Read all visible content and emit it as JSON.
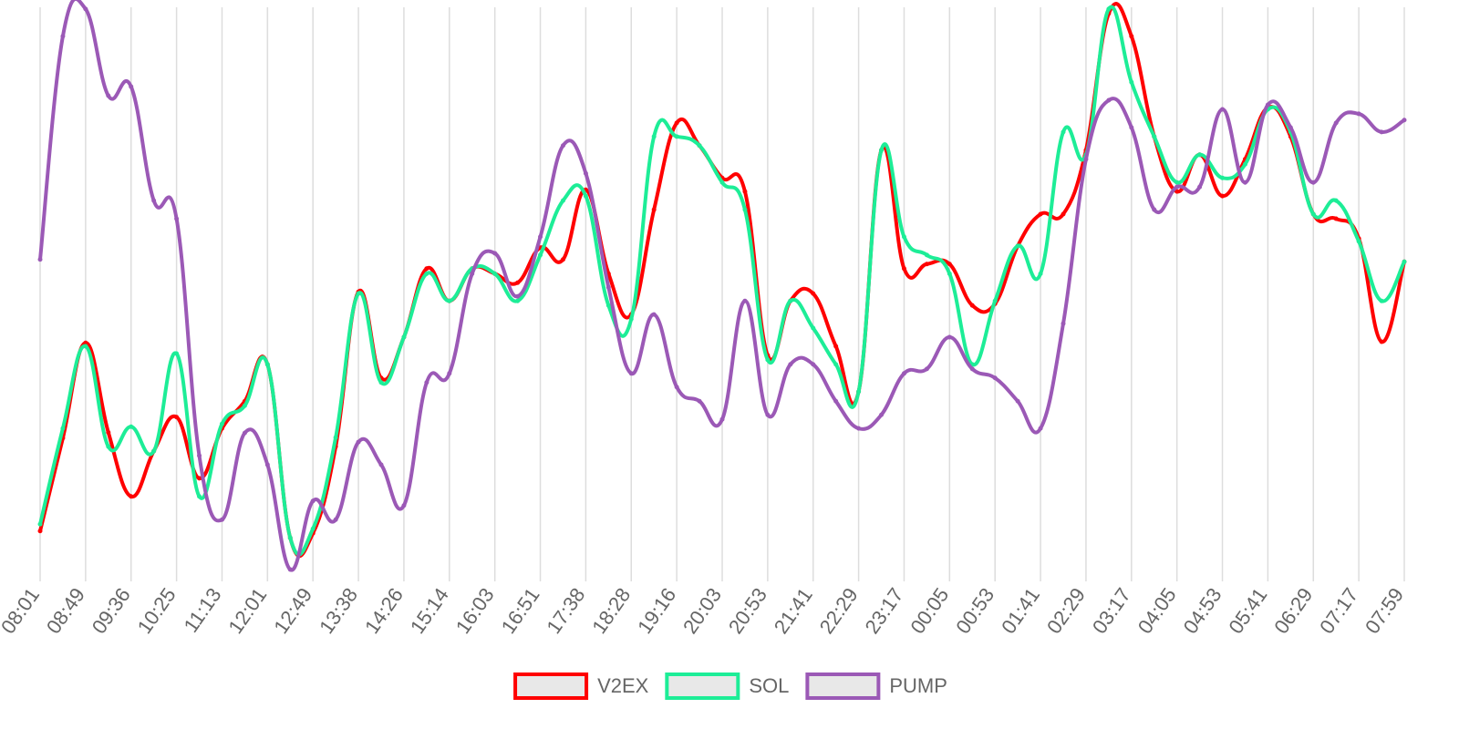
{
  "chart_data": {
    "type": "line",
    "categories": [
      "08:01",
      null,
      "08:49",
      null,
      "09:36",
      null,
      "10:25",
      null,
      "11:13",
      null,
      "12:01",
      null,
      "12:49",
      null,
      "13:38",
      null,
      "14:26",
      null,
      "15:14",
      null,
      "16:03",
      null,
      "16:51",
      null,
      "17:38",
      null,
      "18:28",
      null,
      "19:16",
      null,
      "20:03",
      null,
      "20:53",
      null,
      "21:41",
      null,
      "22:29",
      null,
      "23:17",
      null,
      "00:05",
      null,
      "00:53",
      null,
      "01:41",
      null,
      "02:29",
      null,
      "03:17",
      null,
      "04:05",
      null,
      "04:53",
      null,
      "05:41",
      null,
      "06:29",
      null,
      "07:17",
      null,
      "07:59"
    ],
    "ylim": [
      0,
      100
    ],
    "grid": true,
    "legend": "bottom",
    "series": [
      {
        "name": "V2EX",
        "color": "#ff0000",
        "values": [
          7.6,
          24,
          40.8,
          25,
          13.7,
          21.7,
          27.7,
          16.9,
          25.7,
          30.5,
          37,
          6.4,
          7.2,
          22.5,
          49.8,
          34.6,
          41.8,
          53.9,
          48.2,
          53.9,
          53,
          51.4,
          57.6,
          55.5,
          67.8,
          53,
          45.8,
          64.3,
          79.6,
          75.6,
          69.9,
          67.5,
          38.6,
          48.2,
          49.5,
          40.2,
          32.2,
          74.8,
          53.9,
          54.7,
          54.7,
          47.4,
          47.7,
          57.9,
          63.5,
          63.5,
          74.8,
          98.9,
          94.9,
          77.2,
          67.5,
          74,
          66.7,
          73.2,
          82.3,
          77.2,
          63.5,
          62.7,
          59.2,
          41,
          55.1
        ]
      },
      {
        "name": "SOL",
        "color": "#1ded97",
        "values": [
          8.8,
          25.7,
          40.2,
          22.5,
          26,
          21.7,
          38.9,
          13.7,
          26.5,
          29.7,
          37,
          6.4,
          8,
          24.1,
          49.5,
          33.8,
          41.8,
          53,
          48.2,
          53.9,
          53,
          48.2,
          56.3,
          65.9,
          66.7,
          47.4,
          45,
          77.2,
          77.2,
          75.6,
          69.1,
          64.3,
          37.8,
          48.2,
          43.4,
          37,
          32.2,
          74.8,
          59.5,
          56.3,
          53,
          37,
          48.2,
          57.9,
          53,
          78,
          74,
          99.7,
          86.8,
          77.2,
          69.1,
          74,
          69.9,
          72.3,
          82,
          78,
          63.5,
          65.9,
          58.7,
          48.2,
          55.1
        ]
      },
      {
        "name": "PUMP",
        "color": "#9b59b6",
        "values": [
          55.5,
          94.9,
          99.7,
          84.4,
          86,
          65.9,
          62.7,
          20.9,
          9.6,
          24.9,
          19.3,
          0.8,
          12.9,
          9.6,
          23.3,
          19.3,
          12.1,
          33.8,
          35.4,
          53,
          56.6,
          49,
          59.5,
          75.6,
          70.7,
          50.6,
          35.4,
          45.8,
          33,
          30.5,
          27.3,
          48.2,
          28.1,
          37,
          37,
          30.5,
          25.7,
          28.1,
          35.4,
          36.2,
          41.8,
          36.2,
          34.6,
          30.5,
          25.7,
          44.2,
          73.2,
          83.6,
          78.8,
          64.3,
          68.3,
          68.3,
          82,
          69.1,
          82.8,
          78.8,
          69.1,
          79.6,
          81.2,
          78,
          80.1
        ]
      }
    ]
  }
}
